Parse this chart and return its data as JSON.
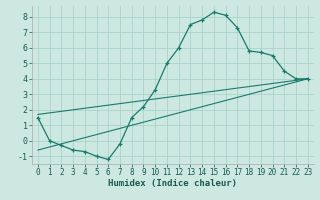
{
  "xlabel": "Humidex (Indice chaleur)",
  "bg_color": "#cce8e0",
  "line_color": "#1a7a6e",
  "grid_color": "#aad4cc",
  "main_x": [
    0,
    1,
    2,
    3,
    4,
    5,
    6,
    7,
    8,
    9,
    10,
    11,
    12,
    13,
    14,
    15,
    16,
    17,
    18,
    19,
    20,
    21,
    22,
    23
  ],
  "main_y": [
    1.5,
    0.0,
    -0.3,
    -0.6,
    -0.7,
    -1.0,
    -1.2,
    -0.2,
    1.5,
    2.2,
    3.3,
    5.0,
    6.0,
    7.5,
    7.8,
    8.3,
    8.1,
    7.3,
    5.8,
    5.7,
    5.5,
    4.5,
    4.0,
    4.0
  ],
  "line1_x": [
    0,
    23
  ],
  "line1_y": [
    -0.6,
    4.0
  ],
  "line2_x": [
    0,
    23
  ],
  "line2_y": [
    1.7,
    4.0
  ],
  "xlim": [
    -0.5,
    23.5
  ],
  "ylim": [
    -1.5,
    8.7
  ],
  "yticks": [
    -1,
    0,
    1,
    2,
    3,
    4,
    5,
    6,
    7,
    8
  ],
  "xticks": [
    0,
    1,
    2,
    3,
    4,
    5,
    6,
    7,
    8,
    9,
    10,
    11,
    12,
    13,
    14,
    15,
    16,
    17,
    18,
    19,
    20,
    21,
    22,
    23
  ],
  "tick_fontsize": 5.5,
  "xlabel_fontsize": 6.5
}
